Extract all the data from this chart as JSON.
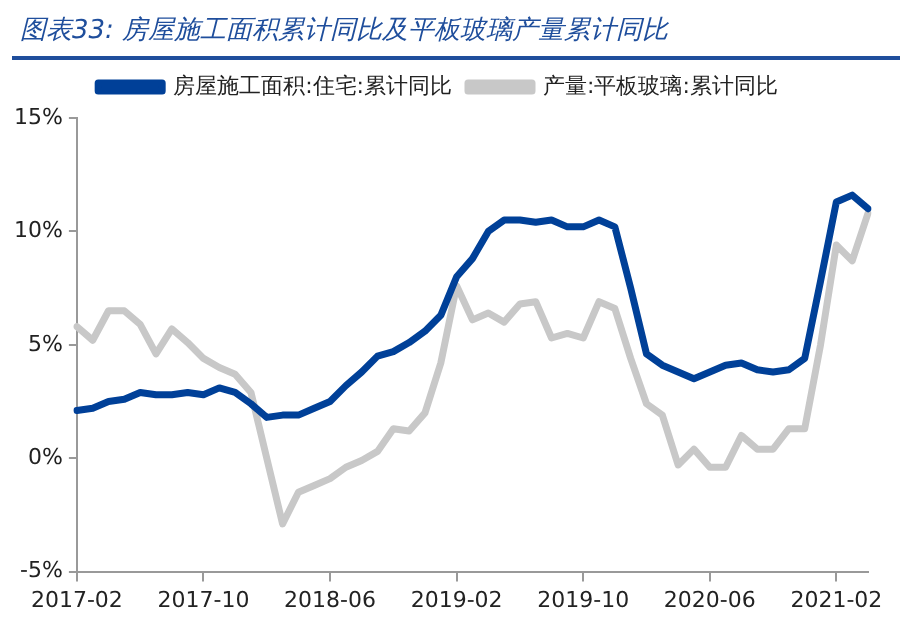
{
  "chart_data": {
    "type": "line",
    "title": "图表33: 房屋施工面积累计同比及平板玻璃产量累计同比",
    "categories": [
      "2017-02",
      null,
      null,
      null,
      null,
      null,
      null,
      null,
      "2017-10",
      null,
      null,
      null,
      null,
      null,
      null,
      null,
      "2018-06",
      null,
      null,
      null,
      null,
      null,
      null,
      null,
      "2019-02",
      null,
      null,
      null,
      null,
      null,
      null,
      null,
      "2019-10",
      null,
      null,
      null,
      null,
      null,
      null,
      null,
      "2020-06",
      null,
      null,
      null,
      null,
      null,
      null,
      null,
      "2021-02",
      null,
      null
    ],
    "series": [
      {
        "name": "房屋施工面积:住宅:累计同比",
        "color": "#004098",
        "values": [
          2.1,
          2.2,
          2.5,
          2.6,
          2.9,
          2.8,
          2.8,
          2.9,
          2.8,
          3.1,
          2.9,
          2.4,
          1.8,
          1.9,
          1.9,
          2.2,
          2.5,
          3.2,
          3.8,
          4.5,
          4.7,
          5.1,
          5.6,
          6.3,
          8.0,
          8.8,
          10.0,
          10.5,
          10.5,
          10.4,
          10.5,
          10.2,
          10.2,
          10.5,
          10.2,
          7.5,
          4.6,
          4.1,
          3.8,
          3.5,
          3.8,
          4.1,
          4.2,
          3.9,
          3.8,
          3.9,
          4.4,
          7.8,
          11.3,
          11.6,
          11.0
        ]
      },
      {
        "name": "产量:平板玻璃:累计同比",
        "color": "#c8c8c8",
        "values": [
          5.8,
          5.2,
          6.5,
          6.5,
          5.9,
          4.6,
          5.7,
          5.1,
          4.4,
          4.0,
          3.7,
          2.9,
          0.0,
          -2.9,
          -1.5,
          -1.2,
          -0.9,
          -0.4,
          -0.1,
          0.3,
          1.3,
          1.2,
          2.0,
          4.2,
          7.6,
          6.1,
          6.4,
          6.0,
          6.8,
          6.9,
          5.3,
          5.5,
          5.3,
          6.9,
          6.6,
          4.4,
          2.4,
          1.9,
          -0.3,
          0.4,
          -0.4,
          -0.4,
          1.0,
          0.4,
          0.4,
          1.3,
          1.3,
          5.0,
          9.4,
          8.7,
          10.8
        ]
      }
    ],
    "ylim": [
      -5,
      15
    ],
    "yticks": [
      {
        "value": -5,
        "label": "-5%"
      },
      {
        "value": 0,
        "label": "0%"
      },
      {
        "value": 5,
        "label": "5%"
      },
      {
        "value": 10,
        "label": "10%"
      },
      {
        "value": 15,
        "label": "15%"
      }
    ],
    "grid": false,
    "legend": "top",
    "marker": "none",
    "line_style": "solid"
  }
}
